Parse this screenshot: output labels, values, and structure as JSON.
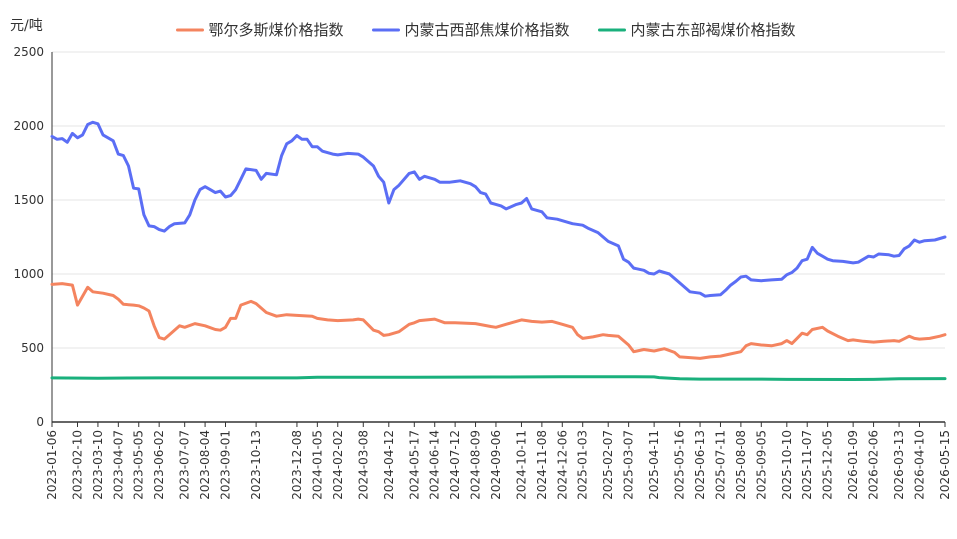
{
  "chart_data": {
    "type": "line",
    "title": "",
    "y_unit": "元/吨",
    "xlabel": "",
    "ylabel": "",
    "ylim": [
      0,
      2500
    ],
    "y_ticks": [
      0,
      500,
      1000,
      1500,
      2000,
      2500
    ],
    "grid": "horizontal",
    "legend_position": "top-center",
    "x_tick_labels": [
      "2023-01-06",
      "2023-02-10",
      "2023-03-10",
      "2023-04-07",
      "2023-05-05",
      "2023-06-02",
      "2023-07-07",
      "2023-08-04",
      "2023-09-01",
      "2023-10-13",
      "2023-12-08",
      "2024-01-05",
      "2024-02-02",
      "2024-03-08",
      "2024-04-12",
      "2024-05-17",
      "2024-06-14",
      "2024-07-12",
      "2024-08-09",
      "2024-09-06",
      "2024-10-11",
      "2024-11-08",
      "2024-12-06",
      "2025-01-03",
      "2025-02-07",
      "2025-03-07",
      "2025-04-11",
      "2025-05-16",
      "2025-06-13",
      "2025-07-11",
      "2025-08-08",
      "2025-09-05",
      "2025-10-10",
      "2025-11-07",
      "2025-12-05",
      "2026-01-09",
      "2026-02-06",
      "2026-03-13",
      "2026-04-10",
      "2026-05-15"
    ],
    "series": [
      {
        "name": "鄂尔多斯煤价格指数",
        "color": "#f4845f",
        "points": [
          [
            "2023-01-06",
            930
          ],
          [
            "2023-01-20",
            935
          ],
          [
            "2023-02-03",
            925
          ],
          [
            "2023-02-10",
            790
          ],
          [
            "2023-02-24",
            910
          ],
          [
            "2023-03-03",
            880
          ],
          [
            "2023-03-17",
            870
          ],
          [
            "2023-03-31",
            855
          ],
          [
            "2023-04-07",
            830
          ],
          [
            "2023-04-14",
            795
          ],
          [
            "2023-04-28",
            790
          ],
          [
            "2023-05-05",
            785
          ],
          [
            "2023-05-12",
            770
          ],
          [
            "2023-05-19",
            750
          ],
          [
            "2023-05-26",
            650
          ],
          [
            "2023-06-02",
            570
          ],
          [
            "2023-06-09",
            560
          ],
          [
            "2023-06-16",
            590
          ],
          [
            "2023-06-30",
            650
          ],
          [
            "2023-07-07",
            640
          ],
          [
            "2023-07-21",
            665
          ],
          [
            "2023-08-04",
            650
          ],
          [
            "2023-08-18",
            625
          ],
          [
            "2023-08-25",
            620
          ],
          [
            "2023-09-01",
            640
          ],
          [
            "2023-09-08",
            700
          ],
          [
            "2023-09-15",
            700
          ],
          [
            "2023-09-22",
            790
          ],
          [
            "2023-10-06",
            815
          ],
          [
            "2023-10-13",
            800
          ],
          [
            "2023-10-27",
            740
          ],
          [
            "2023-11-10",
            715
          ],
          [
            "2023-11-24",
            725
          ],
          [
            "2023-12-08",
            720
          ],
          [
            "2023-12-29",
            715
          ],
          [
            "2024-01-05",
            700
          ],
          [
            "2024-01-19",
            690
          ],
          [
            "2024-02-02",
            685
          ],
          [
            "2024-02-23",
            690
          ],
          [
            "2024-03-01",
            695
          ],
          [
            "2024-03-08",
            690
          ],
          [
            "2024-03-22",
            620
          ],
          [
            "2024-03-29",
            610
          ],
          [
            "2024-04-05",
            585
          ],
          [
            "2024-04-12",
            590
          ],
          [
            "2024-04-26",
            610
          ],
          [
            "2024-05-10",
            660
          ],
          [
            "2024-05-17",
            670
          ],
          [
            "2024-05-24",
            685
          ],
          [
            "2024-06-14",
            695
          ],
          [
            "2024-06-28",
            670
          ],
          [
            "2024-07-12",
            670
          ],
          [
            "2024-08-09",
            665
          ],
          [
            "2024-08-30",
            645
          ],
          [
            "2024-09-06",
            640
          ],
          [
            "2024-09-27",
            670
          ],
          [
            "2024-10-11",
            690
          ],
          [
            "2024-10-25",
            680
          ],
          [
            "2024-11-08",
            675
          ],
          [
            "2024-11-22",
            680
          ],
          [
            "2024-12-06",
            660
          ],
          [
            "2024-12-20",
            640
          ],
          [
            "2024-12-27",
            590
          ],
          [
            "2025-01-03",
            565
          ],
          [
            "2025-01-17",
            575
          ],
          [
            "2025-01-31",
            590
          ],
          [
            "2025-02-07",
            585
          ],
          [
            "2025-02-21",
            580
          ],
          [
            "2025-03-07",
            520
          ],
          [
            "2025-03-14",
            475
          ],
          [
            "2025-03-28",
            490
          ],
          [
            "2025-04-11",
            480
          ],
          [
            "2025-04-25",
            495
          ],
          [
            "2025-05-09",
            470
          ],
          [
            "2025-05-16",
            440
          ],
          [
            "2025-05-30",
            435
          ],
          [
            "2025-06-13",
            430
          ],
          [
            "2025-06-27",
            440
          ],
          [
            "2025-07-11",
            445
          ],
          [
            "2025-07-25",
            460
          ],
          [
            "2025-08-08",
            475
          ],
          [
            "2025-08-15",
            515
          ],
          [
            "2025-08-22",
            530
          ],
          [
            "2025-09-05",
            520
          ],
          [
            "2025-09-19",
            515
          ],
          [
            "2025-10-03",
            530
          ],
          [
            "2025-10-10",
            550
          ],
          [
            "2025-10-17",
            530
          ],
          [
            "2025-10-24",
            565
          ],
          [
            "2025-10-31",
            600
          ],
          [
            "2025-11-07",
            590
          ],
          [
            "2025-11-14",
            625
          ],
          [
            "2025-11-28",
            640
          ],
          [
            "2025-12-05",
            615
          ],
          [
            "2025-12-19",
            580
          ],
          [
            "2026-01-02",
            550
          ],
          [
            "2026-01-09",
            555
          ],
          [
            "2026-01-23",
            545
          ],
          [
            "2026-02-06",
            540
          ],
          [
            "2026-02-20",
            545
          ],
          [
            "2026-03-06",
            550
          ],
          [
            "2026-03-13",
            545
          ],
          [
            "2026-03-27",
            580
          ],
          [
            "2026-04-03",
            565
          ],
          [
            "2026-04-10",
            560
          ],
          [
            "2026-04-24",
            565
          ],
          [
            "2026-05-08",
            580
          ],
          [
            "2026-05-15",
            590
          ]
        ]
      },
      {
        "name": "内蒙古西部焦煤价格指数",
        "color": "#5b6ef5",
        "points": [
          [
            "2023-01-06",
            1930
          ],
          [
            "2023-01-13",
            1910
          ],
          [
            "2023-01-20",
            1915
          ],
          [
            "2023-01-27",
            1890
          ],
          [
            "2023-02-03",
            1950
          ],
          [
            "2023-02-10",
            1920
          ],
          [
            "2023-02-17",
            1940
          ],
          [
            "2023-02-24",
            2010
          ],
          [
            "2023-03-03",
            2025
          ],
          [
            "2023-03-10",
            2015
          ],
          [
            "2023-03-17",
            1940
          ],
          [
            "2023-03-31",
            1900
          ],
          [
            "2023-04-07",
            1810
          ],
          [
            "2023-04-14",
            1800
          ],
          [
            "2023-04-21",
            1730
          ],
          [
            "2023-04-28",
            1580
          ],
          [
            "2023-05-05",
            1575
          ],
          [
            "2023-05-12",
            1400
          ],
          [
            "2023-05-19",
            1325
          ],
          [
            "2023-05-26",
            1320
          ],
          [
            "2023-06-02",
            1300
          ],
          [
            "2023-06-09",
            1290
          ],
          [
            "2023-06-16",
            1320
          ],
          [
            "2023-06-23",
            1340
          ],
          [
            "2023-07-07",
            1345
          ],
          [
            "2023-07-14",
            1400
          ],
          [
            "2023-07-21",
            1500
          ],
          [
            "2023-07-28",
            1570
          ],
          [
            "2023-08-04",
            1590
          ],
          [
            "2023-08-11",
            1570
          ],
          [
            "2023-08-18",
            1550
          ],
          [
            "2023-08-25",
            1560
          ],
          [
            "2023-09-01",
            1520
          ],
          [
            "2023-09-08",
            1530
          ],
          [
            "2023-09-15",
            1570
          ],
          [
            "2023-09-22",
            1640
          ],
          [
            "2023-09-29",
            1710
          ],
          [
            "2023-10-13",
            1700
          ],
          [
            "2023-10-20",
            1640
          ],
          [
            "2023-10-27",
            1680
          ],
          [
            "2023-11-10",
            1670
          ],
          [
            "2023-11-17",
            1800
          ],
          [
            "2023-11-24",
            1880
          ],
          [
            "2023-12-01",
            1900
          ],
          [
            "2023-12-08",
            1935
          ],
          [
            "2023-12-15",
            1910
          ],
          [
            "2023-12-22",
            1910
          ],
          [
            "2023-12-29",
            1860
          ],
          [
            "2024-01-05",
            1860
          ],
          [
            "2024-01-12",
            1830
          ],
          [
            "2024-01-26",
            1810
          ],
          [
            "2024-02-02",
            1805
          ],
          [
            "2024-02-16",
            1815
          ],
          [
            "2024-03-01",
            1810
          ],
          [
            "2024-03-08",
            1790
          ],
          [
            "2024-03-22",
            1730
          ],
          [
            "2024-03-29",
            1660
          ],
          [
            "2024-04-05",
            1620
          ],
          [
            "2024-04-12",
            1480
          ],
          [
            "2024-04-19",
            1570
          ],
          [
            "2024-04-26",
            1600
          ],
          [
            "2024-05-10",
            1680
          ],
          [
            "2024-05-17",
            1690
          ],
          [
            "2024-05-24",
            1640
          ],
          [
            "2024-05-31",
            1660
          ],
          [
            "2024-06-14",
            1640
          ],
          [
            "2024-06-21",
            1620
          ],
          [
            "2024-07-05",
            1620
          ],
          [
            "2024-07-12",
            1625
          ],
          [
            "2024-07-19",
            1630
          ],
          [
            "2024-08-02",
            1610
          ],
          [
            "2024-08-09",
            1590
          ],
          [
            "2024-08-16",
            1550
          ],
          [
            "2024-08-23",
            1540
          ],
          [
            "2024-08-30",
            1480
          ],
          [
            "2024-09-06",
            1470
          ],
          [
            "2024-09-13",
            1460
          ],
          [
            "2024-09-20",
            1440
          ],
          [
            "2024-10-04",
            1470
          ],
          [
            "2024-10-11",
            1480
          ],
          [
            "2024-10-18",
            1510
          ],
          [
            "2024-10-25",
            1440
          ],
          [
            "2024-11-08",
            1420
          ],
          [
            "2024-11-15",
            1380
          ],
          [
            "2024-11-29",
            1370
          ],
          [
            "2024-12-06",
            1360
          ],
          [
            "2024-12-20",
            1340
          ],
          [
            "2025-01-03",
            1330
          ],
          [
            "2025-01-10",
            1310
          ],
          [
            "2025-01-24",
            1280
          ],
          [
            "2025-02-07",
            1220
          ],
          [
            "2025-02-21",
            1190
          ],
          [
            "2025-02-28",
            1100
          ],
          [
            "2025-03-07",
            1080
          ],
          [
            "2025-03-14",
            1040
          ],
          [
            "2025-03-28",
            1025
          ],
          [
            "2025-04-04",
            1005
          ],
          [
            "2025-04-11",
            1000
          ],
          [
            "2025-04-18",
            1020
          ],
          [
            "2025-04-25",
            1010
          ],
          [
            "2025-05-02",
            1000
          ],
          [
            "2025-05-16",
            940
          ],
          [
            "2025-05-30",
            880
          ],
          [
            "2025-06-13",
            870
          ],
          [
            "2025-06-20",
            850
          ],
          [
            "2025-06-27",
            855
          ],
          [
            "2025-07-11",
            860
          ],
          [
            "2025-07-18",
            890
          ],
          [
            "2025-07-25",
            925
          ],
          [
            "2025-08-01",
            950
          ],
          [
            "2025-08-08",
            980
          ],
          [
            "2025-08-15",
            985
          ],
          [
            "2025-08-22",
            960
          ],
          [
            "2025-09-05",
            955
          ],
          [
            "2025-09-19",
            960
          ],
          [
            "2025-10-03",
            965
          ],
          [
            "2025-10-10",
            995
          ],
          [
            "2025-10-17",
            1010
          ],
          [
            "2025-10-24",
            1040
          ],
          [
            "2025-10-31",
            1090
          ],
          [
            "2025-11-07",
            1100
          ],
          [
            "2025-11-14",
            1180
          ],
          [
            "2025-11-21",
            1140
          ],
          [
            "2025-11-28",
            1120
          ],
          [
            "2025-12-05",
            1100
          ],
          [
            "2025-12-12",
            1090
          ],
          [
            "2025-12-26",
            1085
          ],
          [
            "2026-01-09",
            1075
          ],
          [
            "2026-01-16",
            1080
          ],
          [
            "2026-01-23",
            1100
          ],
          [
            "2026-01-30",
            1120
          ],
          [
            "2026-02-06",
            1115
          ],
          [
            "2026-02-13",
            1135
          ],
          [
            "2026-02-27",
            1130
          ],
          [
            "2026-03-06",
            1120
          ],
          [
            "2026-03-13",
            1125
          ],
          [
            "2026-03-20",
            1170
          ],
          [
            "2026-03-27",
            1190
          ],
          [
            "2026-04-03",
            1230
          ],
          [
            "2026-04-10",
            1215
          ],
          [
            "2026-04-17",
            1225
          ],
          [
            "2026-05-01",
            1230
          ],
          [
            "2026-05-08",
            1240
          ],
          [
            "2026-05-15",
            1250
          ]
        ]
      },
      {
        "name": "内蒙古东部褐煤价格指数",
        "color": "#1ab07c",
        "points": [
          [
            "2023-01-06",
            298
          ],
          [
            "2023-03-10",
            296
          ],
          [
            "2023-06-02",
            298
          ],
          [
            "2023-10-13",
            298
          ],
          [
            "2023-12-08",
            298
          ],
          [
            "2024-01-05",
            302
          ],
          [
            "2024-05-17",
            303
          ],
          [
            "2024-09-06",
            304
          ],
          [
            "2024-12-06",
            306
          ],
          [
            "2025-03-07",
            306
          ],
          [
            "2025-04-11",
            305
          ],
          [
            "2025-04-18",
            300
          ],
          [
            "2025-05-16",
            292
          ],
          [
            "2025-06-13",
            290
          ],
          [
            "2025-09-05",
            290
          ],
          [
            "2025-10-10",
            288
          ],
          [
            "2026-01-09",
            287
          ],
          [
            "2026-02-06",
            288
          ],
          [
            "2026-03-13",
            292
          ],
          [
            "2026-05-15",
            293
          ]
        ]
      }
    ]
  }
}
